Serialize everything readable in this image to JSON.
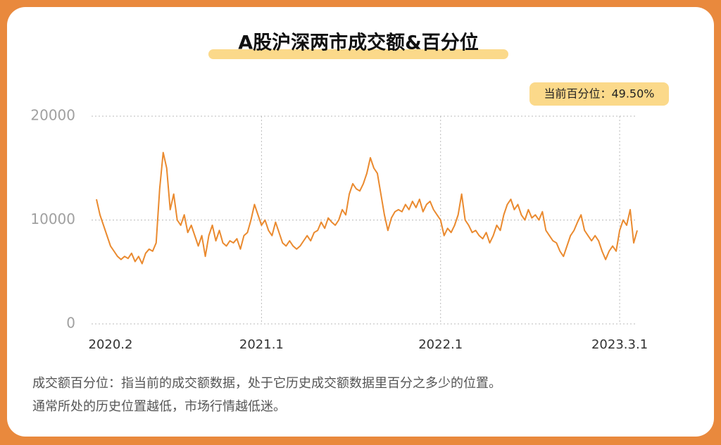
{
  "chart_data": {
    "type": "line",
    "title": "A股沪深两市成交额&百分位",
    "annotation": "当前百分位：49.50%",
    "footnote": [
      "成交额百分位：指当前的成交额数据，处于它历史成交额数据里百分之多少的位置。",
      "通常所处的历史位置越低，市场行情越低迷。"
    ],
    "categories": [
      "2020.2",
      null,
      null,
      null,
      null,
      null,
      null,
      null,
      null,
      null,
      null,
      null,
      null,
      null,
      null,
      null,
      null,
      null,
      null,
      null,
      null,
      null,
      null,
      null,
      null,
      null,
      null,
      null,
      null,
      null,
      null,
      null,
      null,
      null,
      null,
      null,
      null,
      null,
      null,
      null,
      null,
      null,
      null,
      null,
      null,
      null,
      null,
      "2021.1",
      null,
      null,
      null,
      null,
      null,
      null,
      null,
      null,
      null,
      null,
      null,
      null,
      null,
      null,
      null,
      null,
      null,
      null,
      null,
      null,
      null,
      null,
      null,
      null,
      null,
      null,
      null,
      null,
      null,
      null,
      null,
      null,
      null,
      null,
      null,
      null,
      null,
      null,
      null,
      null,
      null,
      null,
      null,
      null,
      null,
      null,
      null,
      null,
      null,
      null,
      "2022.1",
      null,
      null,
      null,
      null,
      null,
      null,
      null,
      null,
      null,
      null,
      null,
      null,
      null,
      null,
      null,
      null,
      null,
      null,
      null,
      null,
      null,
      null,
      null,
      null,
      null,
      null,
      null,
      null,
      null,
      null,
      null,
      null,
      null,
      null,
      null,
      null,
      null,
      null,
      null,
      null,
      null,
      null,
      null,
      null,
      null,
      null,
      null,
      null,
      null,
      null,
      "2023.3.1",
      null,
      null,
      null,
      null,
      null
    ],
    "series": [
      {
        "color": "#ea8a2f",
        "values": [
          12000,
          10500,
          9500,
          8500,
          7500,
          7000,
          6500,
          6200,
          6500,
          6300,
          6800,
          6000,
          6500,
          5800,
          6800,
          7200,
          7000,
          7800,
          13000,
          16500,
          15000,
          11000,
          12500,
          10000,
          9500,
          10500,
          8800,
          9500,
          8500,
          7500,
          8500,
          6500,
          8500,
          9500,
          8000,
          9000,
          7800,
          7500,
          8000,
          7800,
          8200,
          7200,
          8500,
          8800,
          10000,
          11500,
          10500,
          9500,
          10000,
          9000,
          8500,
          9800,
          8800,
          7800,
          7500,
          8000,
          7500,
          7200,
          7500,
          8000,
          8500,
          8000,
          8800,
          9000,
          9800,
          9200,
          10200,
          9800,
          9500,
          10000,
          11000,
          10500,
          12500,
          13500,
          13000,
          12800,
          13500,
          14500,
          16000,
          15000,
          14500,
          12500,
          10500,
          9000,
          10200,
          10800,
          11000,
          10800,
          11500,
          11000,
          11800,
          11200,
          12000,
          10800,
          11500,
          11800,
          11000,
          10500,
          10000,
          8500,
          9200,
          8800,
          9500,
          10500,
          12500,
          10000,
          9500,
          8800,
          9000,
          8500,
          8200,
          8800,
          7800,
          8500,
          9500,
          9000,
          10500,
          11500,
          12000,
          11000,
          11500,
          10500,
          10000,
          11000,
          10200,
          10500,
          10000,
          10800,
          9000,
          8500,
          8000,
          7800,
          7000,
          6500,
          7500,
          8500,
          9000,
          9800,
          10500,
          9000,
          8500,
          8000,
          8500,
          8000,
          7000,
          6200,
          7000,
          7500,
          7000,
          9000,
          10000,
          9500,
          11000,
          7800,
          9000
        ]
      }
    ],
    "ylim": [
      0,
      20000
    ],
    "yticks": [
      0,
      10000,
      20000
    ],
    "grid": true
  }
}
